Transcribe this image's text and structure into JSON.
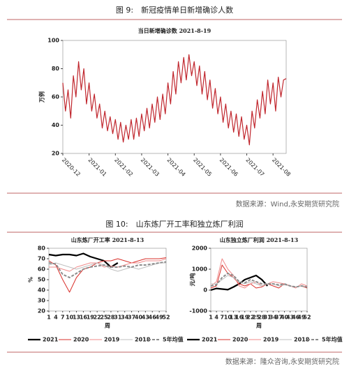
{
  "figures": [
    {
      "caption": "图 9:　新冠疫情单日新增确诊人数",
      "source": "数据来源：Wind,永安期货研究院"
    },
    {
      "caption": "图 10:　山东炼厂开工率和独立炼厂利润",
      "source": "数据来源：隆众咨询,永安期货研究院"
    }
  ],
  "chart_data": [
    {
      "type": "line",
      "title": "当日新增确诊数 2021-8-19",
      "ylabel": "万例",
      "color": "#c0262d",
      "categories": [
        "2020-12",
        null,
        null,
        null,
        null,
        null,
        null,
        null,
        null,
        null,
        "2021-01",
        null,
        null,
        null,
        null,
        null,
        null,
        null,
        null,
        null,
        "2021-02",
        null,
        null,
        null,
        null,
        null,
        null,
        null,
        null,
        null,
        "2021-03",
        null,
        null,
        null,
        null,
        null,
        null,
        null,
        null,
        null,
        "2021-04",
        null,
        null,
        null,
        null,
        null,
        null,
        null,
        null,
        null,
        "2021-05",
        null,
        null,
        null,
        null,
        null,
        null,
        null,
        null,
        null,
        "2021-06",
        null,
        null,
        null,
        null,
        null,
        null,
        null,
        null,
        null,
        "2021-07",
        null,
        null,
        null,
        null,
        null,
        null,
        null,
        null,
        null,
        "2021-08",
        null,
        null,
        null,
        null,
        null
      ],
      "values": [
        70,
        50,
        65,
        45,
        75,
        60,
        85,
        65,
        80,
        55,
        70,
        50,
        62,
        45,
        55,
        38,
        50,
        36,
        46,
        34,
        44,
        30,
        42,
        28,
        40,
        30,
        44,
        30,
        45,
        32,
        48,
        36,
        52,
        38,
        55,
        42,
        60,
        44,
        62,
        48,
        70,
        55,
        78,
        62,
        85,
        70,
        88,
        72,
        90,
        75,
        85,
        68,
        82,
        62,
        78,
        58,
        72,
        52,
        66,
        48,
        60,
        42,
        55,
        38,
        50,
        35,
        48,
        32,
        46,
        30,
        40,
        26,
        50,
        38,
        58,
        45,
        64,
        48,
        72,
        55,
        70,
        50,
        74,
        60,
        72,
        73
      ],
      "ylim": [
        20,
        100
      ],
      "yticks": [
        20,
        40,
        60,
        80,
        100
      ]
    },
    {
      "type": "line",
      "title": "山东炼厂开工率 2021-8-13",
      "ylabel": "%",
      "xlabel": "周",
      "x": [
        1,
        4,
        7,
        10,
        13,
        16,
        19,
        22,
        25,
        28,
        31,
        34,
        37,
        40,
        43,
        46,
        49,
        52
      ],
      "xlim": [
        1,
        52
      ],
      "xticks": [
        1,
        4,
        7,
        10,
        13,
        16,
        19,
        22,
        25,
        28,
        31,
        34,
        37,
        40,
        43,
        46,
        49,
        52
      ],
      "ylim": [
        20,
        80
      ],
      "yticks": [
        20,
        30,
        40,
        50,
        60,
        70,
        80
      ],
      "series": [
        {
          "name": "2021",
          "color": "#000000",
          "width": 2.2,
          "values": [
            74,
            73,
            74,
            74,
            73,
            75,
            72,
            70,
            68,
            62,
            66,
            null,
            null,
            null,
            null,
            null,
            null,
            null
          ]
        },
        {
          "name": "2020",
          "color": "#d9302b",
          "width": 1,
          "values": [
            68,
            64,
            50,
            38,
            52,
            60,
            62,
            66,
            68,
            68,
            70,
            68,
            66,
            68,
            70,
            70,
            70,
            71
          ]
        },
        {
          "name": "2019",
          "color": "#f08a8a",
          "width": 1,
          "values": [
            62,
            62,
            60,
            58,
            62,
            64,
            66,
            66,
            62,
            63,
            62,
            64,
            66,
            66,
            68,
            68,
            68,
            70
          ]
        },
        {
          "name": "2018",
          "color": "#bfbfbf",
          "width": 1,
          "values": [
            64,
            66,
            64,
            62,
            60,
            62,
            64,
            66,
            64,
            60,
            58,
            60,
            62,
            60,
            62,
            64,
            66,
            66
          ]
        },
        {
          "name": "5年均值",
          "color": "#8c8c8c",
          "width": 2,
          "dashed": true,
          "values": [
            66,
            65,
            55,
            52,
            56,
            60,
            62,
            63,
            64,
            62,
            62,
            63,
            62,
            64,
            64,
            65,
            66,
            67
          ]
        }
      ]
    },
    {
      "type": "line",
      "title": "山东独立炼厂利润 2021-8-13",
      "ylabel": "元/吨",
      "xlabel": "周",
      "x": [
        1,
        4,
        7,
        10,
        13,
        16,
        19,
        22,
        25,
        28,
        31,
        34,
        37,
        40,
        43,
        46,
        49,
        52
      ],
      "xlim": [
        1,
        52
      ],
      "xticks": [
        1,
        4,
        7,
        10,
        13,
        16,
        19,
        22,
        25,
        28,
        31,
        34,
        37,
        40,
        43,
        46,
        49,
        52
      ],
      "ylim": [
        -1000,
        2000
      ],
      "yticks": [
        -1000,
        0,
        1000,
        2000
      ],
      "series": [
        {
          "name": "2021",
          "color": "#000000",
          "width": 2.2,
          "values": [
            0,
            80,
            50,
            20,
            150,
            300,
            500,
            600,
            700,
            500,
            200,
            null,
            null,
            null,
            null,
            null,
            null,
            null
          ]
        },
        {
          "name": "2020",
          "color": "#d9302b",
          "width": 1,
          "values": [
            100,
            200,
            1200,
            800,
            600,
            300,
            200,
            300,
            100,
            150,
            300,
            200,
            100,
            300,
            200,
            150,
            200,
            100
          ]
        },
        {
          "name": "2019",
          "color": "#f08a8a",
          "width": 1,
          "values": [
            200,
            400,
            1500,
            1000,
            700,
            200,
            100,
            300,
            400,
            200,
            300,
            400,
            350,
            300,
            200,
            100,
            300,
            200
          ]
        },
        {
          "name": "2018",
          "color": "#bfbfbf",
          "width": 1,
          "values": [
            300,
            300,
            500,
            700,
            600,
            400,
            300,
            400,
            300,
            200,
            300,
            300,
            200,
            250,
            200,
            150,
            200,
            150
          ]
        },
        {
          "name": "5年均值",
          "color": "#8c8c8c",
          "width": 2,
          "dashed": true,
          "values": [
            200,
            250,
            600,
            800,
            700,
            400,
            350,
            500,
            400,
            300,
            300,
            300,
            250,
            300,
            200,
            150,
            200,
            150
          ]
        }
      ]
    }
  ]
}
